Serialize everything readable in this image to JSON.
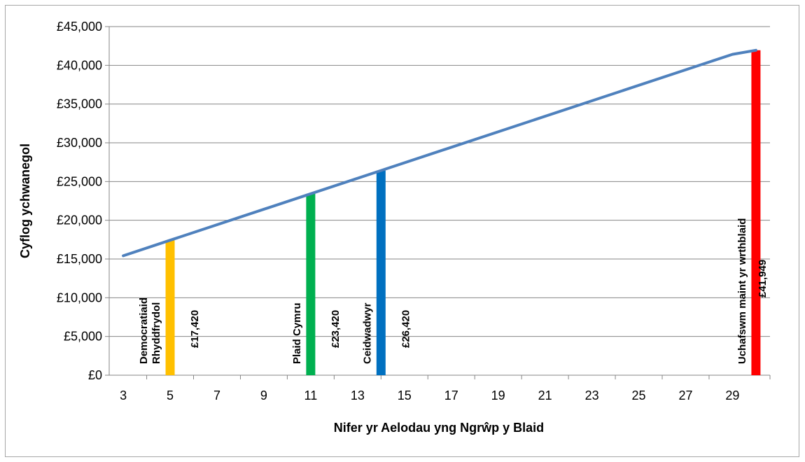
{
  "chart_data": {
    "type": "line",
    "title": "",
    "xlabel": "Nifer yr Aelodau yng Ngrŵp y Blaid",
    "ylabel": "Cyflog ychwanegol",
    "xlim": [
      2.4,
      30.6
    ],
    "ylim": [
      0,
      45000
    ],
    "x_ticks": [
      3,
      5,
      7,
      9,
      11,
      13,
      15,
      17,
      19,
      21,
      23,
      25,
      27,
      29
    ],
    "y_ticks": [
      0,
      5000,
      10000,
      15000,
      20000,
      25000,
      30000,
      35000,
      40000,
      45000
    ],
    "y_tick_labels": [
      "£0",
      "£5,000",
      "£10,000",
      "£15,000",
      "£20,000",
      "£25,000",
      "£30,000",
      "£35,000",
      "£40,000",
      "£45,000"
    ],
    "grid": "horizontal",
    "line": {
      "color": "#4f81bd",
      "points": [
        [
          3,
          15420
        ],
        [
          5,
          17420
        ],
        [
          11,
          23420
        ],
        [
          14,
          26420
        ],
        [
          29,
          41420
        ],
        [
          30,
          41949
        ]
      ]
    },
    "bars": [
      {
        "x": 5,
        "value": 17420,
        "value_label": "£17,420",
        "party_lines": [
          "Democratiaid",
          "Rhyddfrydol"
        ],
        "color": "#ffc000"
      },
      {
        "x": 11,
        "value": 23420,
        "value_label": "£23,420",
        "party_lines": [
          "Plaid Cymru"
        ],
        "color": "#00b050"
      },
      {
        "x": 14,
        "value": 26420,
        "value_label": "£26,420",
        "party_lines": [
          "Ceidwadwyr"
        ],
        "color": "#0070c0"
      },
      {
        "x": 30,
        "value": 41949,
        "value_label": "£41,949",
        "party_lines": [
          "Uchafswm maint yr wrthblaid"
        ],
        "color": "#ff0000"
      }
    ]
  }
}
